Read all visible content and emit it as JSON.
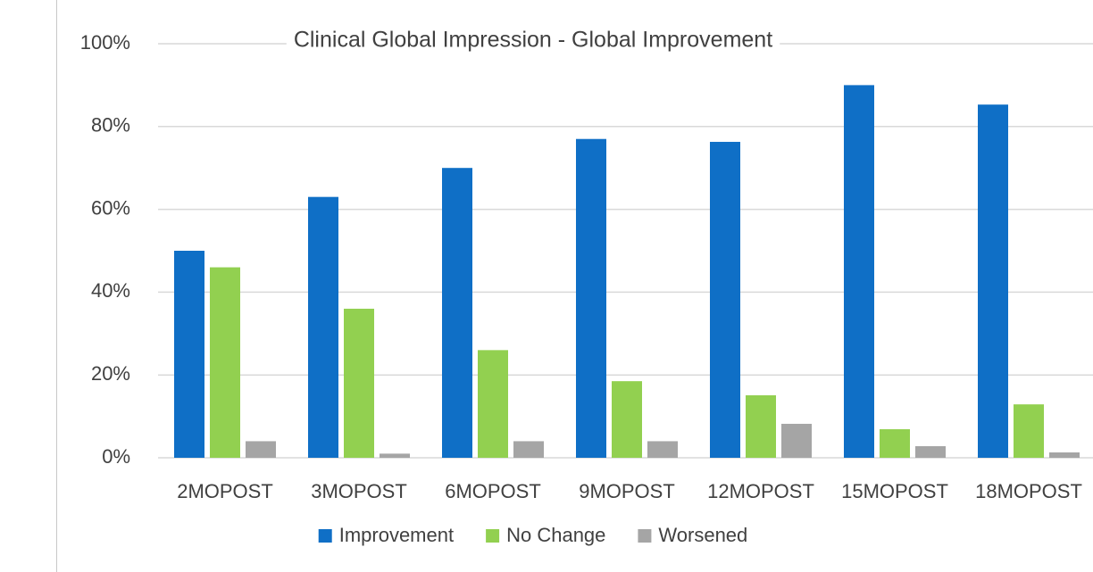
{
  "chart_data": {
    "type": "bar",
    "title": "Clinical Global Impression - Global Improvement",
    "categories": [
      "2MOPOST",
      "3MOPOST",
      "6MOPOST",
      "9MOPOST",
      "12MOPOST",
      "15MOPOST",
      "18MOPOST"
    ],
    "series": [
      {
        "name": "Improvement",
        "color": "#0F6FC6",
        "values": [
          50,
          63,
          70,
          77,
          76.3,
          90,
          85.3
        ]
      },
      {
        "name": "No Change",
        "color": "#92D050",
        "values": [
          46,
          36,
          26,
          18.5,
          15.1,
          6.9,
          12.9
        ]
      },
      {
        "name": "Worsened",
        "color": "#A5A5A5",
        "values": [
          4,
          1,
          4,
          4,
          8.2,
          2.8,
          1.3
        ]
      }
    ],
    "ylim": [
      0,
      100
    ],
    "yticks": [
      {
        "value": 0,
        "label": "0%"
      },
      {
        "value": 20,
        "label": "20%"
      },
      {
        "value": 40,
        "label": "40%"
      },
      {
        "value": 60,
        "label": "60%"
      },
      {
        "value": 80,
        "label": "80%"
      },
      {
        "value": 100,
        "label": "100%"
      }
    ],
    "grid": true,
    "legend": "bottom"
  }
}
